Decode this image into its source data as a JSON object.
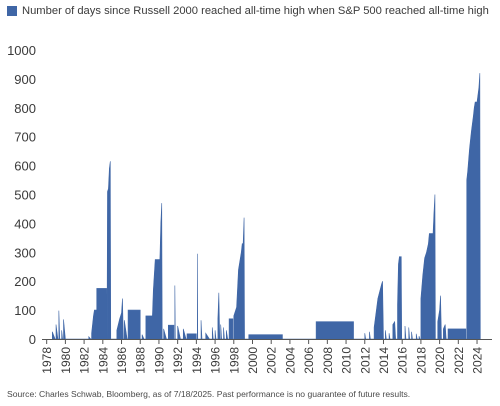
{
  "chart_data": {
    "type": "area",
    "title": "",
    "xlabel": "",
    "ylabel": "",
    "ylim": [
      0,
      1000
    ],
    "xlim": [
      1977.5,
      2025.6
    ],
    "grid": false,
    "legend_position": "top-left",
    "series": [
      {
        "name": "Number of days since Russell 2000 reached all-time high when S&P 500 reached all-time high",
        "color": "#3f66a6",
        "points": [
          [
            1978.6,
            0
          ],
          [
            1978.6,
            25
          ],
          [
            1978.9,
            0
          ],
          [
            1979.0,
            0
          ],
          [
            1979.0,
            50
          ],
          [
            1979.2,
            0
          ],
          [
            1979.3,
            0
          ],
          [
            1979.3,
            98
          ],
          [
            1979.4,
            0
          ],
          [
            1979.6,
            0
          ],
          [
            1979.6,
            30
          ],
          [
            1979.7,
            0
          ],
          [
            1979.8,
            0
          ],
          [
            1979.8,
            68
          ],
          [
            1980.0,
            0
          ],
          [
            1982.5,
            0
          ],
          [
            1982.5,
            8
          ],
          [
            1982.7,
            0
          ],
          [
            1982.8,
            0
          ],
          [
            1982.8,
            20
          ],
          [
            1982.9,
            50
          ],
          [
            1983.0,
            80
          ],
          [
            1983.1,
            100
          ],
          [
            1983.3,
            100
          ],
          [
            1983.3,
            0
          ],
          [
            1983.35,
            0
          ],
          [
            1983.35,
            175
          ],
          [
            1984.4,
            175
          ],
          [
            1984.4,
            0
          ],
          [
            1984.45,
            0
          ],
          [
            1984.5,
            510
          ],
          [
            1984.6,
            520
          ],
          [
            1984.7,
            590
          ],
          [
            1984.8,
            615
          ],
          [
            1984.85,
            0
          ],
          [
            1985.5,
            0
          ],
          [
            1985.5,
            30
          ],
          [
            1985.8,
            70
          ],
          [
            1986.0,
            90
          ],
          [
            1986.1,
            140
          ],
          [
            1986.2,
            0
          ],
          [
            1986.3,
            0
          ],
          [
            1986.3,
            65
          ],
          [
            1986.6,
            0
          ],
          [
            1986.7,
            0
          ],
          [
            1986.7,
            100
          ],
          [
            1988.0,
            100
          ],
          [
            1988.0,
            0
          ],
          [
            1988.2,
            0
          ],
          [
            1988.2,
            15
          ],
          [
            1988.4,
            0
          ],
          [
            1988.6,
            0
          ],
          [
            1988.6,
            80
          ],
          [
            1989.3,
            80
          ],
          [
            1989.4,
            170
          ],
          [
            1989.6,
            275
          ],
          [
            1990.1,
            275
          ],
          [
            1990.2,
            400
          ],
          [
            1990.3,
            470
          ],
          [
            1990.35,
            0
          ],
          [
            1990.5,
            0
          ],
          [
            1990.5,
            35
          ],
          [
            1990.8,
            0
          ],
          [
            1991.0,
            0
          ],
          [
            1991.0,
            48
          ],
          [
            1991.6,
            48
          ],
          [
            1991.6,
            0
          ],
          [
            1991.7,
            0
          ],
          [
            1991.7,
            185
          ],
          [
            1991.75,
            0
          ],
          [
            1992.0,
            0
          ],
          [
            1992.0,
            45
          ],
          [
            1992.3,
            0
          ],
          [
            1992.6,
            0
          ],
          [
            1992.6,
            35
          ],
          [
            1992.9,
            0
          ],
          [
            1993.0,
            0
          ],
          [
            1993.0,
            18
          ],
          [
            1994.0,
            18
          ],
          [
            1994.0,
            0
          ],
          [
            1994.1,
            0
          ],
          [
            1994.1,
            295
          ],
          [
            1994.15,
            0
          ],
          [
            1994.5,
            0
          ],
          [
            1994.5,
            65
          ],
          [
            1994.6,
            0
          ],
          [
            1995.0,
            0
          ],
          [
            1995.0,
            20
          ],
          [
            1995.4,
            0
          ],
          [
            1995.7,
            0
          ],
          [
            1995.7,
            40
          ],
          [
            1995.8,
            0
          ],
          [
            1996.0,
            0
          ],
          [
            1996.0,
            30
          ],
          [
            1996.1,
            0
          ],
          [
            1996.3,
            0
          ],
          [
            1996.3,
            70
          ],
          [
            1996.4,
            160
          ],
          [
            1996.5,
            0
          ],
          [
            1996.6,
            0
          ],
          [
            1996.6,
            50
          ],
          [
            1996.7,
            0
          ],
          [
            1996.9,
            0
          ],
          [
            1996.9,
            40
          ],
          [
            1997.0,
            0
          ],
          [
            1997.2,
            0
          ],
          [
            1997.2,
            30
          ],
          [
            1997.35,
            0
          ],
          [
            1997.5,
            0
          ],
          [
            1997.5,
            70
          ],
          [
            1997.9,
            70
          ],
          [
            1997.9,
            0
          ],
          [
            1998.0,
            0
          ],
          [
            1998.0,
            80
          ],
          [
            1998.3,
            110
          ],
          [
            1998.5,
            240
          ],
          [
            1998.8,
            300
          ],
          [
            1998.9,
            330
          ],
          [
            1999.0,
            330
          ],
          [
            1999.1,
            420
          ],
          [
            1999.15,
            0
          ],
          [
            1999.6,
            0
          ],
          [
            1999.6,
            15
          ],
          [
            2003.2,
            15
          ],
          [
            2003.2,
            0
          ],
          [
            2006.8,
            0
          ],
          [
            2006.8,
            60
          ],
          [
            2010.8,
            60
          ],
          [
            2010.8,
            0
          ],
          [
            2012.0,
            0
          ],
          [
            2012.0,
            20
          ],
          [
            2012.1,
            0
          ],
          [
            2012.5,
            0
          ],
          [
            2012.5,
            25
          ],
          [
            2012.6,
            0
          ],
          [
            2013.0,
            0
          ],
          [
            2013.0,
            40
          ],
          [
            2013.2,
            90
          ],
          [
            2013.4,
            140
          ],
          [
            2013.6,
            165
          ],
          [
            2013.8,
            190
          ],
          [
            2013.9,
            200
          ],
          [
            2014.0,
            0
          ],
          [
            2014.2,
            0
          ],
          [
            2014.2,
            30
          ],
          [
            2014.3,
            0
          ],
          [
            2014.6,
            0
          ],
          [
            2014.6,
            20
          ],
          [
            2014.7,
            0
          ],
          [
            2015.0,
            0
          ],
          [
            2015.0,
            50
          ],
          [
            2015.2,
            60
          ],
          [
            2015.3,
            0
          ],
          [
            2015.5,
            0
          ],
          [
            2015.5,
            120
          ],
          [
            2015.6,
            260
          ],
          [
            2015.7,
            285
          ],
          [
            2015.9,
            285
          ],
          [
            2015.95,
            0
          ],
          [
            2016.3,
            0
          ],
          [
            2016.3,
            45
          ],
          [
            2016.4,
            0
          ],
          [
            2016.7,
            0
          ],
          [
            2016.7,
            40
          ],
          [
            2016.8,
            0
          ],
          [
            2017.0,
            0
          ],
          [
            2017.0,
            25
          ],
          [
            2017.1,
            0
          ],
          [
            2017.5,
            0
          ],
          [
            2017.5,
            18
          ],
          [
            2017.6,
            0
          ],
          [
            2017.8,
            0
          ],
          [
            2017.8,
            10
          ],
          [
            2017.9,
            0
          ],
          [
            2018.0,
            0
          ],
          [
            2018.0,
            140
          ],
          [
            2018.2,
            220
          ],
          [
            2018.4,
            280
          ],
          [
            2018.6,
            300
          ],
          [
            2018.8,
            330
          ],
          [
            2018.9,
            365
          ],
          [
            2019.3,
            365
          ],
          [
            2019.4,
            440
          ],
          [
            2019.5,
            500
          ],
          [
            2019.55,
            0
          ],
          [
            2019.8,
            0
          ],
          [
            2019.8,
            60
          ],
          [
            2020.0,
            100
          ],
          [
            2020.1,
            150
          ],
          [
            2020.2,
            0
          ],
          [
            2020.4,
            0
          ],
          [
            2020.4,
            35
          ],
          [
            2020.6,
            50
          ],
          [
            2020.7,
            0
          ],
          [
            2020.9,
            0
          ],
          [
            2020.9,
            35
          ],
          [
            2022.8,
            35
          ],
          [
            2022.8,
            0
          ],
          [
            2022.9,
            0
          ],
          [
            2022.9,
            550
          ],
          [
            2023.0,
            580
          ],
          [
            2023.1,
            620
          ],
          [
            2023.2,
            660
          ],
          [
            2023.3,
            690
          ],
          [
            2023.4,
            720
          ],
          [
            2023.5,
            745
          ],
          [
            2023.6,
            770
          ],
          [
            2023.7,
            800
          ],
          [
            2023.8,
            820
          ],
          [
            2024.0,
            820
          ],
          [
            2024.2,
            870
          ],
          [
            2024.3,
            920
          ],
          [
            2024.35,
            0
          ]
        ]
      }
    ],
    "y_ticks": [
      "0",
      "100",
      "200",
      "300",
      "400",
      "500",
      "600",
      "700",
      "800",
      "900",
      "1000"
    ],
    "x_ticks": [
      "1978",
      "1980",
      "1982",
      "1984",
      "1986",
      "1988",
      "1990",
      "1992",
      "1994",
      "1996",
      "1998",
      "2000",
      "2002",
      "2004",
      "2006",
      "2008",
      "2010",
      "2012",
      "2014",
      "2016",
      "2018",
      "2020",
      "2022",
      "2024"
    ]
  },
  "footer": {
    "source": "Source: Charles Schwab, Bloomberg, as of 7/18/2025. Past performance is no guarantee of future results."
  }
}
